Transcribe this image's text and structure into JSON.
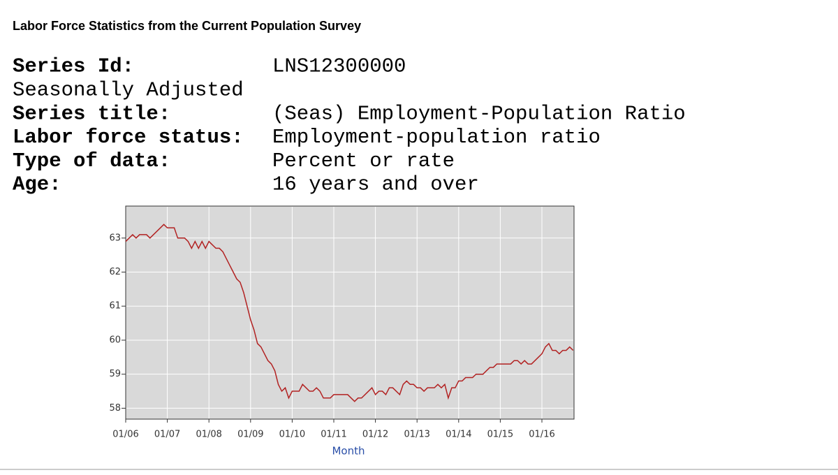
{
  "header": {
    "title": "Labor Force Statistics from the Current Population Survey"
  },
  "fields": [
    {
      "label": "Series Id:",
      "value": "LNS12300000"
    },
    {
      "label": "Seasonally Adjusted"
    },
    {
      "label": "Series title:",
      "value": "(Seas) Employment-Population Ratio"
    },
    {
      "label": "Labor force status:",
      "value": "Employment-population ratio"
    },
    {
      "label": "Type of data:",
      "value": "Percent or rate"
    },
    {
      "label": "Age:",
      "value": "16 years and over"
    }
  ],
  "chart_data": {
    "type": "line",
    "x_label": "Month",
    "categories": [
      "01/06",
      null,
      null,
      null,
      null,
      null,
      null,
      null,
      null,
      null,
      null,
      null,
      "01/07",
      null,
      null,
      null,
      null,
      null,
      null,
      null,
      null,
      null,
      null,
      null,
      "01/08",
      null,
      null,
      null,
      null,
      null,
      null,
      null,
      null,
      null,
      null,
      null,
      "01/09",
      null,
      null,
      null,
      null,
      null,
      null,
      null,
      null,
      null,
      null,
      null,
      "01/10",
      null,
      null,
      null,
      null,
      null,
      null,
      null,
      null,
      null,
      null,
      null,
      "01/11",
      null,
      null,
      null,
      null,
      null,
      null,
      null,
      null,
      null,
      null,
      null,
      "01/12",
      null,
      null,
      null,
      null,
      null,
      null,
      null,
      null,
      null,
      null,
      null,
      "01/13",
      null,
      null,
      null,
      null,
      null,
      null,
      null,
      null,
      null,
      null,
      null,
      "01/14",
      null,
      null,
      null,
      null,
      null,
      null,
      null,
      null,
      null,
      null,
      null,
      "01/15",
      null,
      null,
      null,
      null,
      null,
      null,
      null,
      null,
      null,
      null,
      null,
      "01/16",
      null,
      null,
      null,
      null,
      null,
      null,
      null,
      null,
      null
    ],
    "values": [
      62.9,
      63.0,
      63.1,
      63.0,
      63.1,
      63.1,
      63.1,
      63.0,
      63.1,
      63.2,
      63.3,
      63.4,
      63.3,
      63.3,
      63.3,
      63.0,
      63.0,
      63.0,
      62.9,
      62.7,
      62.9,
      62.7,
      62.9,
      62.7,
      62.9,
      62.8,
      62.7,
      62.7,
      62.6,
      62.4,
      62.2,
      62.0,
      61.8,
      61.7,
      61.4,
      61.0,
      60.6,
      60.3,
      59.9,
      59.8,
      59.6,
      59.4,
      59.3,
      59.1,
      58.7,
      58.5,
      58.6,
      58.3,
      58.5,
      58.5,
      58.5,
      58.7,
      58.6,
      58.5,
      58.5,
      58.6,
      58.5,
      58.3,
      58.3,
      58.3,
      58.4,
      58.4,
      58.4,
      58.4,
      58.4,
      58.3,
      58.2,
      58.3,
      58.3,
      58.4,
      58.5,
      58.6,
      58.4,
      58.5,
      58.5,
      58.4,
      58.6,
      58.6,
      58.5,
      58.4,
      58.7,
      58.8,
      58.7,
      58.7,
      58.6,
      58.6,
      58.5,
      58.6,
      58.6,
      58.6,
      58.7,
      58.6,
      58.7,
      58.3,
      58.6,
      58.6,
      58.8,
      58.8,
      58.9,
      58.9,
      58.9,
      59.0,
      59.0,
      59.0,
      59.1,
      59.2,
      59.2,
      59.3,
      59.3,
      59.3,
      59.3,
      59.3,
      59.4,
      59.4,
      59.3,
      59.4,
      59.3,
      59.3,
      59.4,
      59.5,
      59.6,
      59.8,
      59.9,
      59.7,
      59.7,
      59.6,
      59.7,
      59.7,
      59.8,
      59.7
    ],
    "color": "#b22222",
    "ylim": [
      57.68,
      63.94
    ],
    "yticks": [
      58,
      59,
      60,
      61,
      62,
      63
    ],
    "grid": true
  }
}
